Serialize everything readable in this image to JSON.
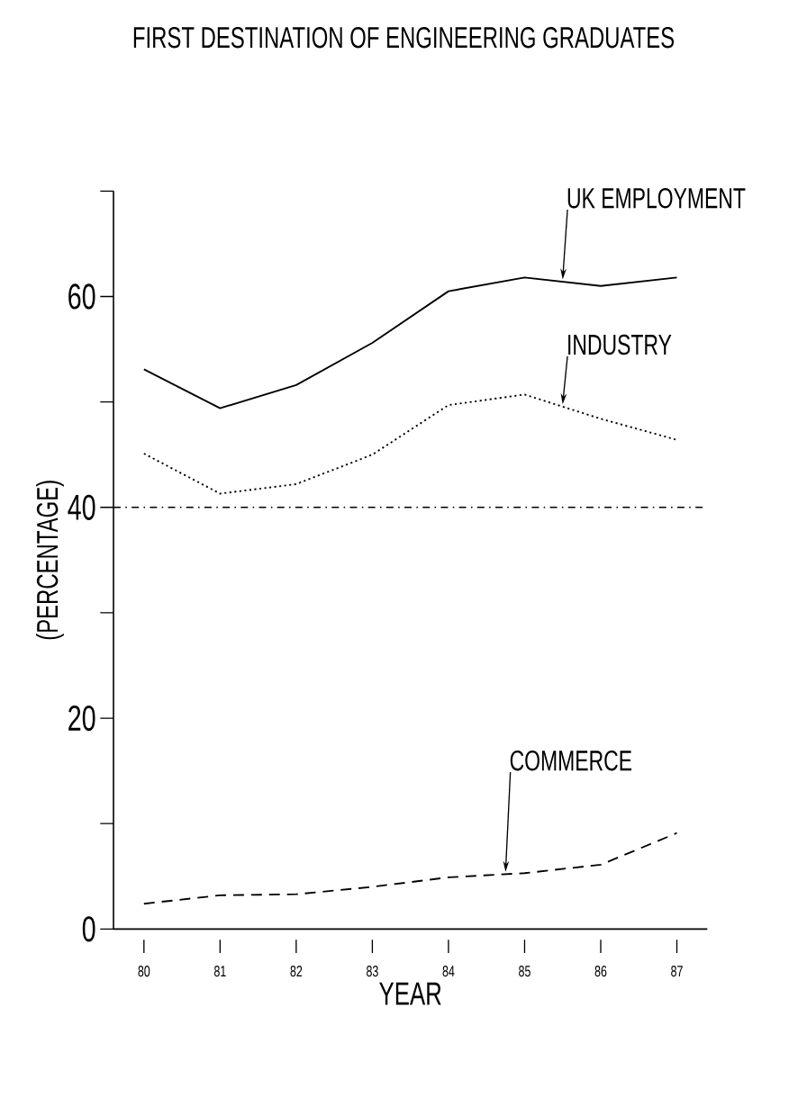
{
  "chart_data": {
    "type": "line",
    "title": "FIRST DESTINATION OF ENGINEERING GRADUATES",
    "xlabel": "YEAR",
    "ylabel": "(PERCENTAGE)",
    "x": [
      80,
      81,
      82,
      83,
      84,
      85,
      86,
      87
    ],
    "series": [
      {
        "name": "UK EMPLOYMENT",
        "color": "#000000",
        "line_style": "solid",
        "values": [
          53.1,
          49.4,
          51.6,
          55.6,
          60.5,
          61.8,
          61.0,
          61.8
        ]
      },
      {
        "name": "INDUSTRY",
        "color": "#000000",
        "line_style": "dotted",
        "values": [
          45.1,
          41.3,
          42.2,
          45.0,
          49.7,
          50.7,
          48.4,
          46.4
        ]
      },
      {
        "name": "COMMERCE",
        "color": "#000000",
        "line_style": "dashed",
        "values": [
          2.4,
          3.2,
          3.3,
          4.0,
          4.9,
          5.3,
          6.1,
          9.1
        ]
      }
    ],
    "xlim": [
      79.6,
      87.4
    ],
    "ylim": [
      0,
      70
    ],
    "xticks": [
      80,
      81,
      82,
      83,
      84,
      85,
      86,
      87
    ],
    "yticks": [
      0,
      {
        "value": 10,
        "label": null
      },
      20,
      {
        "value": 30,
        "label": null
      },
      40,
      {
        "value": 50,
        "label": null
      },
      60,
      {
        "value": 70,
        "label": null
      }
    ],
    "ref_lines": [
      {
        "axis": "y",
        "value": 40,
        "label": null,
        "line_style": "dashdot",
        "color": "#000000"
      }
    ],
    "legend": false,
    "grid": false,
    "marker": "none"
  }
}
